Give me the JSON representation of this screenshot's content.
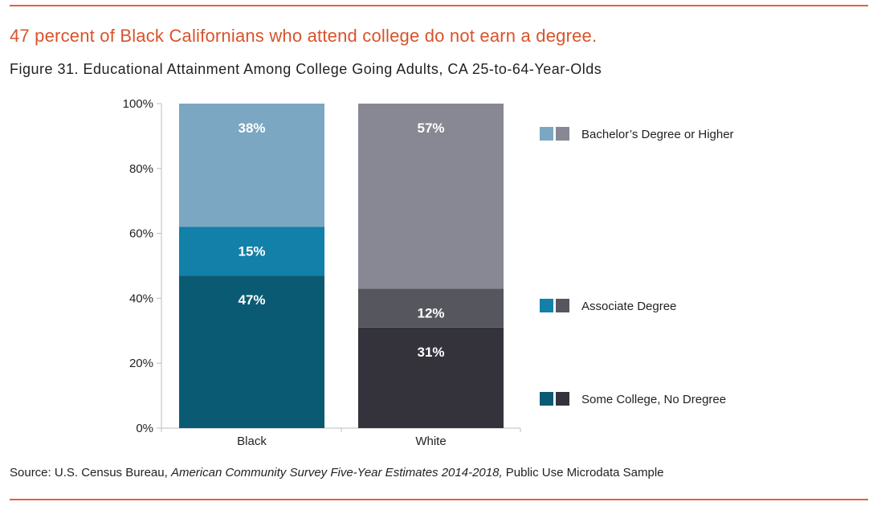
{
  "headline": "47 percent of Black Californians who attend college do not earn a degree.",
  "figure_title": "Figure 31. Educational Attainment Among College Going Adults, CA 25-to-64-Year-Olds",
  "source": {
    "prefix": "Source: U.S. Census Bureau, ",
    "italic": "American Community Survey Five-Year Estimates 2014-2018,",
    "suffix": " Public Use Microdata Sample"
  },
  "colors": {
    "accent_rule": "#e0643a",
    "headline": "#d9532b"
  },
  "chart_data": {
    "type": "bar",
    "stacked": true,
    "categories": [
      "Black",
      "White"
    ],
    "series": [
      {
        "name": "Some College, No Dregree",
        "values": [
          47,
          31
        ],
        "labels": [
          "47%",
          "31%"
        ],
        "colors": [
          "#0a5a73",
          "#34333c"
        ]
      },
      {
        "name": "Associate Degree",
        "values": [
          15,
          12
        ],
        "labels": [
          "15%",
          "12%"
        ],
        "colors": [
          "#1280a8",
          "#56565e"
        ]
      },
      {
        "name": "Bachelor’s Degree or Higher",
        "values": [
          38,
          57
        ],
        "labels": [
          "38%",
          "57%"
        ],
        "colors": [
          "#7ba7c3",
          "#878893"
        ]
      }
    ],
    "ylim": [
      0,
      100
    ],
    "yticks": [
      0,
      20,
      40,
      60,
      80,
      100
    ],
    "ytick_labels": [
      "0%",
      "20%",
      "40%",
      "60%",
      "80%",
      "100%"
    ],
    "xlabel": "",
    "ylabel": "",
    "legend_position": "right"
  }
}
